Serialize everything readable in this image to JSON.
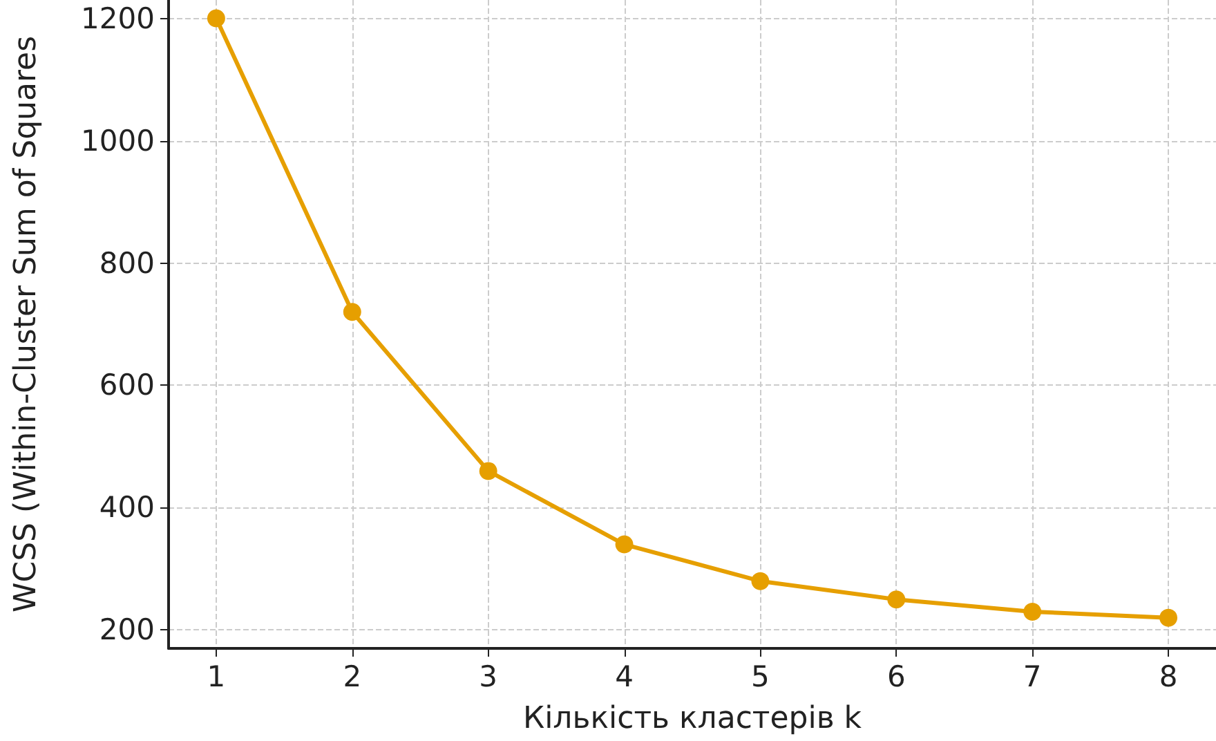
{
  "chart_data": {
    "type": "line",
    "xlabel": "Кількість кластерів k",
    "ylabel": "WCSS (Within-Cluster Sum of Squares",
    "x": [
      1,
      2,
      3,
      4,
      5,
      6,
      7,
      8
    ],
    "series": [
      {
        "color": "#e69f00",
        "values": [
          1200,
          720,
          460,
          340,
          280,
          250,
          230,
          220
        ]
      }
    ],
    "xlim": [
      0.65,
      8.35
    ],
    "xticks": [
      1,
      2,
      3,
      4,
      5,
      6,
      7,
      8
    ],
    "ylim": [
      170,
      1230
    ],
    "yticks": [
      200,
      400,
      600,
      800,
      1000,
      1200
    ],
    "grid": true,
    "marker": "circle",
    "line_style": "solid"
  }
}
